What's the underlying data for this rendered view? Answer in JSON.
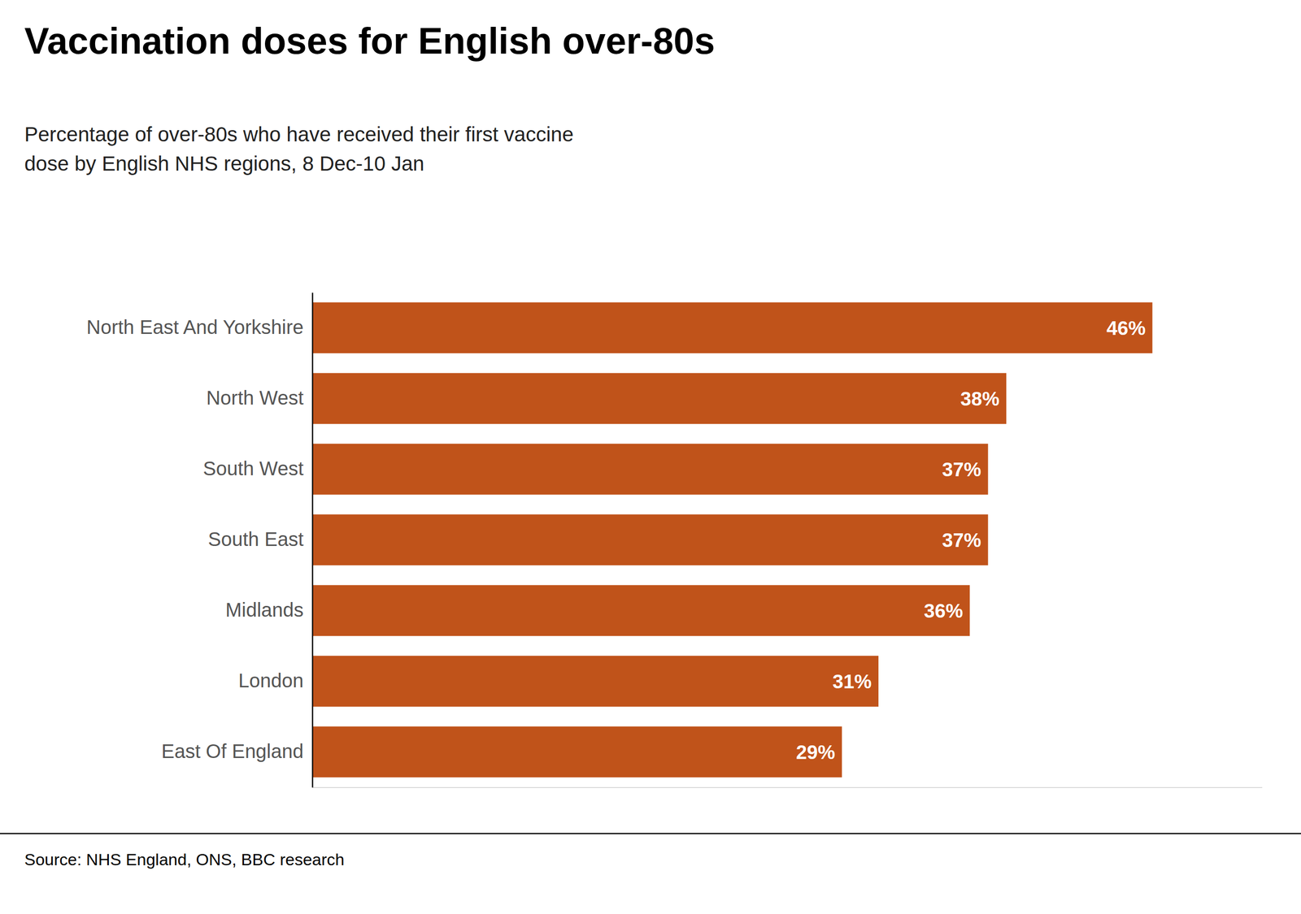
{
  "chart_data": {
    "type": "bar",
    "orientation": "horizontal",
    "title": "Vaccination doses for English over-80s",
    "subtitle": "Percentage of over-80s who have received their first vaccine\ndose by English NHS regions, 8 Dec-10 Jan",
    "source": "Source: NHS England, ONS, BBC research",
    "categories": [
      "North East And Yorkshire",
      "North West",
      "South West",
      "South East",
      "Midlands",
      "London",
      "East Of England"
    ],
    "values": [
      46,
      38,
      37,
      37,
      36,
      31,
      29
    ],
    "value_labels": [
      "46%",
      "38%",
      "37%",
      "37%",
      "36%",
      "31%",
      "29%"
    ],
    "color": "#c0531a",
    "xlim": [
      0,
      52
    ],
    "data_labels": true,
    "tick_labels": "y",
    "grid": false
  }
}
